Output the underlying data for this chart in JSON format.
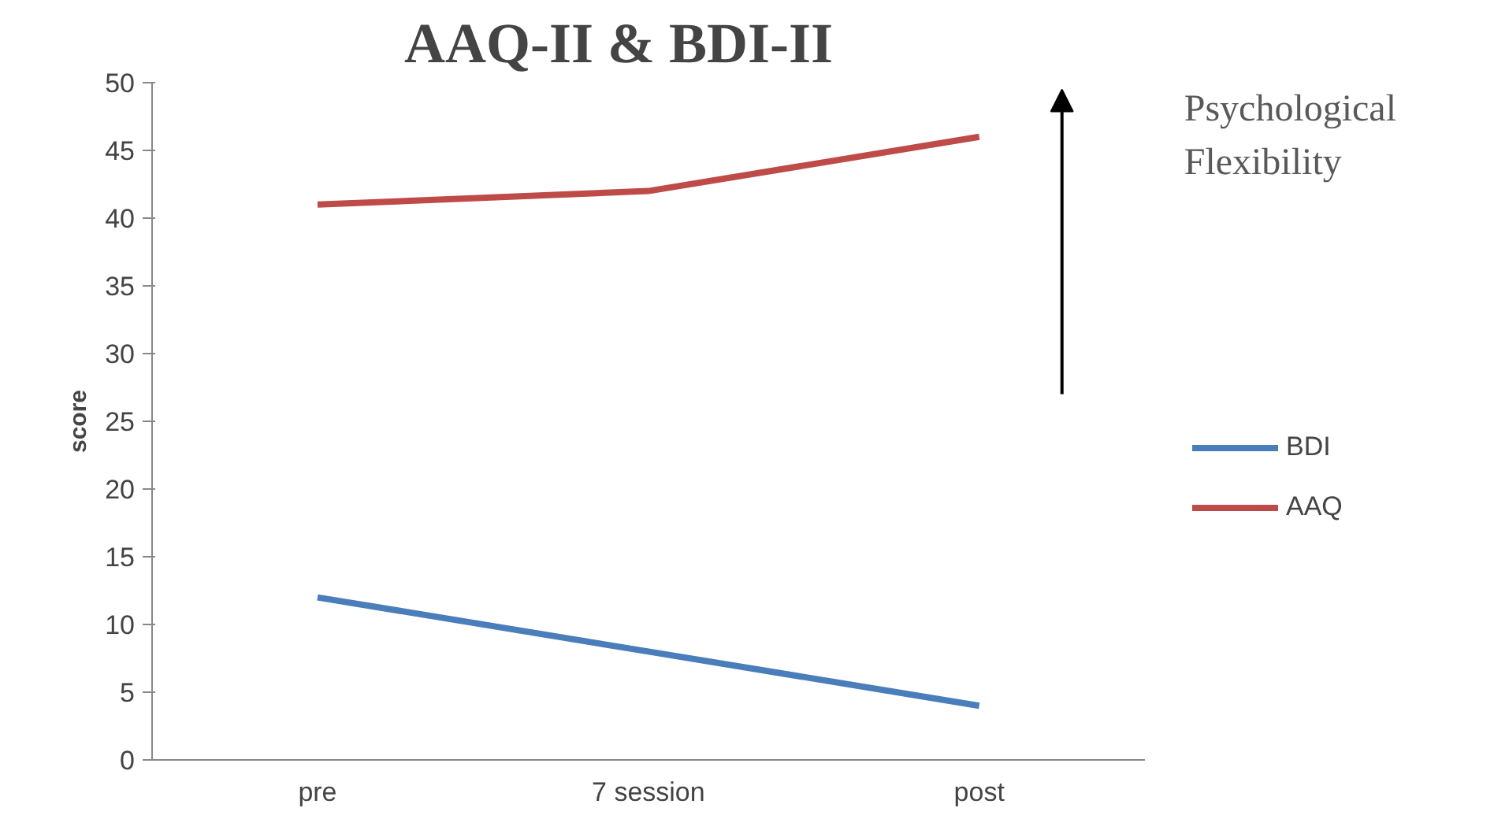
{
  "chart_data": {
    "type": "line",
    "title": "AAQ-II & BDI-II",
    "ylabel": "score",
    "categories": [
      "pre",
      "7 session",
      "post"
    ],
    "series": [
      {
        "name": "BDI",
        "color": "#4a7ebb",
        "values": [
          12,
          8,
          4
        ]
      },
      {
        "name": "AAQ",
        "color": "#be4b48",
        "values": [
          41,
          42,
          46
        ]
      }
    ],
    "ylim": [
      0,
      50
    ],
    "yticks": [
      0,
      5,
      10,
      15,
      20,
      25,
      30,
      35,
      40,
      45,
      50
    ],
    "grid": false,
    "legend": "right",
    "line_style": "solid",
    "marker": "none",
    "annotations": [
      "Psychological\nFlexibility"
    ]
  }
}
